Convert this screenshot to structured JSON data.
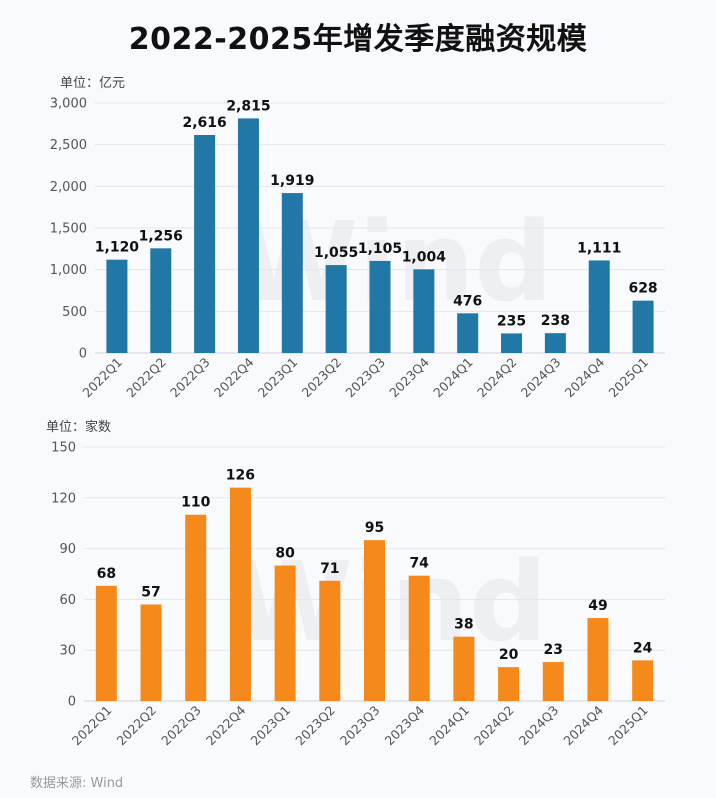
{
  "title": "2022-2025年增发季度融资规模",
  "source": "数据来源: Wind",
  "watermark": "Wind",
  "chart_data": [
    {
      "type": "bar",
      "unit_label": "单位：亿元",
      "categories": [
        "2022Q1",
        "2022Q2",
        "2022Q3",
        "2022Q4",
        "2023Q1",
        "2023Q2",
        "2023Q3",
        "2023Q4",
        "2024Q1",
        "2024Q2",
        "2024Q3",
        "2024Q4",
        "2025Q1"
      ],
      "values": [
        1120,
        1256,
        2616,
        2815,
        1919,
        1055,
        1105,
        1004,
        476,
        235,
        238,
        1111,
        628
      ],
      "data_labels": [
        "1,120",
        "1,256",
        "2,616",
        "2,815",
        "1,919",
        "1,055",
        "1,105",
        "1,004",
        "476",
        "235",
        "238",
        "1,111",
        "628"
      ],
      "yticks": [
        0,
        500,
        1000,
        1500,
        2000,
        2500,
        3000
      ],
      "ytick_labels": [
        "0",
        "500",
        "1,000",
        "1,500",
        "2,000",
        "2,500",
        "3,000"
      ],
      "ylim": [
        0,
        3000
      ],
      "color": "#2177a5"
    },
    {
      "type": "bar",
      "unit_label": "单位：家数",
      "categories": [
        "2022Q1",
        "2022Q2",
        "2022Q3",
        "2022Q4",
        "2023Q1",
        "2023Q2",
        "2023Q3",
        "2023Q4",
        "2024Q1",
        "2024Q2",
        "2024Q3",
        "2024Q4",
        "2025Q1"
      ],
      "values": [
        68,
        57,
        110,
        126,
        80,
        71,
        95,
        74,
        38,
        20,
        23,
        49,
        24
      ],
      "data_labels": [
        "68",
        "57",
        "110",
        "126",
        "80",
        "71",
        "95",
        "74",
        "38",
        "20",
        "23",
        "49",
        "24"
      ],
      "yticks": [
        0,
        30,
        60,
        90,
        120,
        150
      ],
      "ytick_labels": [
        "0",
        "30",
        "60",
        "90",
        "120",
        "150"
      ],
      "ylim": [
        0,
        150
      ],
      "color": "#f5891b"
    }
  ]
}
